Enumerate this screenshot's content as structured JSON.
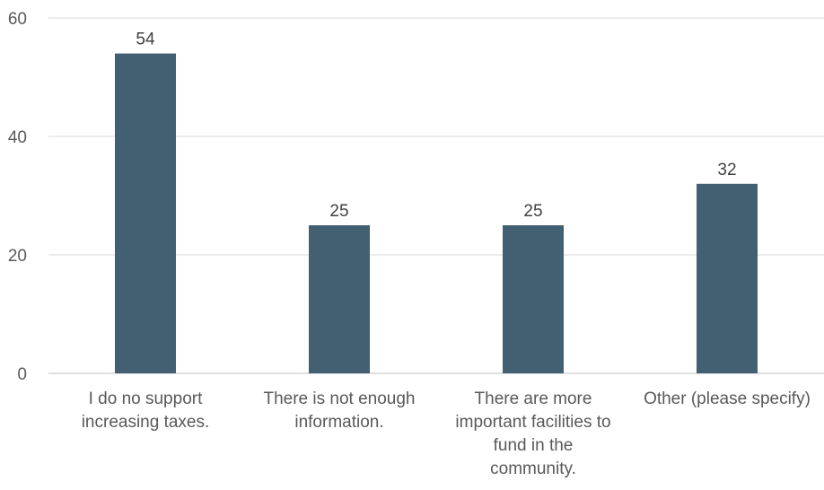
{
  "chart_data": {
    "type": "bar",
    "categories": [
      [
        "I do no support",
        "increasing taxes."
      ],
      [
        "There is not enough",
        "information."
      ],
      [
        "There are more",
        "important facilities to",
        "fund in the",
        "community."
      ],
      [
        "Other (please specify)"
      ]
    ],
    "values": [
      54,
      25,
      25,
      32
    ],
    "data_labels": [
      "54",
      "25",
      "25",
      "32"
    ],
    "ylim": [
      0,
      60
    ],
    "yticks": [
      0,
      20,
      40,
      60
    ],
    "grid": true,
    "title": "",
    "xlabel": "",
    "ylabel": "",
    "colors": {
      "bar": "#426072",
      "grid": "#d9d9d9",
      "axis": "#bfbfbf"
    }
  }
}
